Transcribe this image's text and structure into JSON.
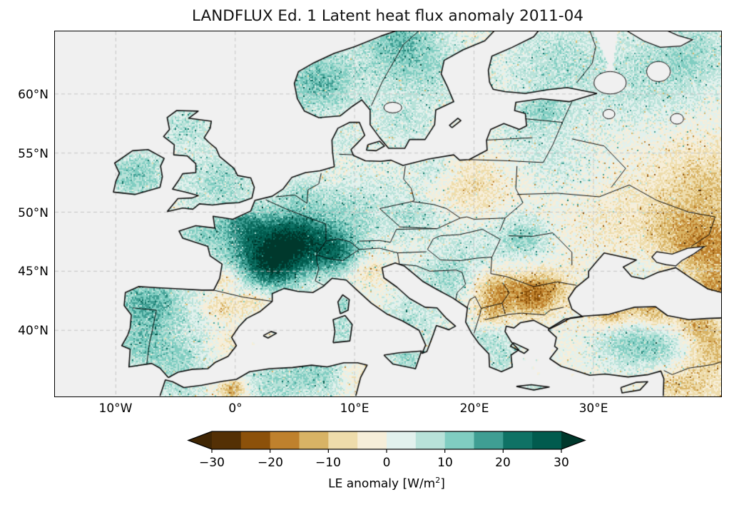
{
  "title": "LANDFLUX Ed. 1 Latent heat flux anomaly 2011-04",
  "axes": {
    "y_ticks": [
      {
        "label": "60°N",
        "lat": 60
      },
      {
        "label": "55°N",
        "lat": 55
      },
      {
        "label": "50°N",
        "lat": 50
      },
      {
        "label": "45°N",
        "lat": 45
      },
      {
        "label": "40°N",
        "lat": 40
      }
    ],
    "x_ticks": [
      {
        "label": "10°W",
        "lon": -10
      },
      {
        "label": "0°",
        "lon": 0
      },
      {
        "label": "10°E",
        "lon": 10
      },
      {
        "label": "20°E",
        "lon": 20
      },
      {
        "label": "30°E",
        "lon": 30
      }
    ]
  },
  "colorbar": {
    "ticks": [
      "−30",
      "−20",
      "−10",
      "0",
      "10",
      "20",
      "30"
    ],
    "tick_values": [
      -30,
      -20,
      -10,
      0,
      10,
      20,
      30
    ],
    "label_prefix": "LE anomaly [W/m",
    "label_sup": "2",
    "label_suffix": "]",
    "under_color": "#402604",
    "over_color": "#00382c",
    "colors": [
      "#543005",
      "#8c510a",
      "#bf812d",
      "#d8b365",
      "#eedcab",
      "#f6eed9",
      "#e2f1ed",
      "#b8e2d9",
      "#80cdc1",
      "#3f9e93",
      "#0f7265",
      "#015b4e"
    ]
  },
  "map": {
    "ocean_color": "#f0f0f0",
    "coastline_color": "#0a0a0a",
    "gridline_color": "#c6c6c6"
  },
  "chart_data": {
    "type": "heatmap",
    "subtype": "geographic-anomaly-map",
    "title": "LANDFLUX Ed. 1 Latent heat flux anomaly 2011-04",
    "units": "W/m2",
    "extent": {
      "lon_min": -15.1,
      "lon_max": 40.7,
      "lat_min": 34.4,
      "lat_max": 65.3
    },
    "colorbar_range": [
      -30,
      30
    ],
    "colorbar_step": 5,
    "grid_lons": [
      -10,
      0,
      10,
      20,
      30
    ],
    "grid_lats": [
      40,
      45,
      50,
      55,
      60
    ],
    "legend_position": "bottom",
    "regions": [
      {
        "name": "france-core",
        "lon": 2.6,
        "lat": 46.9,
        "sigma": 2.6,
        "value": 24
      },
      {
        "name": "france-east",
        "lon": 5.6,
        "lat": 47.6,
        "sigma": 2.0,
        "value": 18
      },
      {
        "name": "massif-central",
        "lon": 3.2,
        "lat": 45.2,
        "sigma": 1.5,
        "value": 12
      },
      {
        "name": "normandy",
        "lon": 0.5,
        "lat": 49.0,
        "sigma": 1.3,
        "value": 8
      },
      {
        "name": "brittany",
        "lon": -3.0,
        "lat": 48.2,
        "sigma": 1.3,
        "value": 9
      },
      {
        "name": "aquitaine-spot",
        "lon": -0.6,
        "lat": 44.4,
        "sigma": 0.8,
        "value": -9
      },
      {
        "name": "pyrenees-spot",
        "lon": 1.5,
        "lat": 42.6,
        "sigma": 0.9,
        "value": -8
      },
      {
        "name": "nw-iberia",
        "lon": -7.4,
        "lat": 42.4,
        "sigma": 2.0,
        "value": 16
      },
      {
        "name": "portugal-south",
        "lon": -8.0,
        "lat": 38.6,
        "sigma": 1.6,
        "value": 10
      },
      {
        "name": "spain-center",
        "lon": -4.0,
        "lat": 39.4,
        "sigma": 2.6,
        "value": 5
      },
      {
        "name": "ebro-valley",
        "lon": -1.0,
        "lat": 41.9,
        "sigma": 1.0,
        "value": -9
      },
      {
        "name": "valencia-coast",
        "lon": -0.6,
        "lat": 38.9,
        "sigma": 1.2,
        "value": -6
      },
      {
        "name": "andalusia",
        "lon": -5.0,
        "lat": 37.3,
        "sigma": 1.5,
        "value": 6
      },
      {
        "name": "england",
        "lon": -1.5,
        "lat": 52.6,
        "sigma": 2.2,
        "value": 9
      },
      {
        "name": "scotland",
        "lon": -4.2,
        "lat": 57.2,
        "sigma": 1.6,
        "value": 8
      },
      {
        "name": "ireland",
        "lon": -8.3,
        "lat": 53.2,
        "sigma": 1.8,
        "value": 12
      },
      {
        "name": "norway-southwest",
        "lon": 7.0,
        "lat": 61.0,
        "sigma": 2.4,
        "value": 14
      },
      {
        "name": "norway-north",
        "lon": 13.5,
        "lat": 65.0,
        "sigma": 2.4,
        "value": 11
      },
      {
        "name": "sweden",
        "lon": 15.5,
        "lat": 62.0,
        "sigma": 2.8,
        "value": 8
      },
      {
        "name": "sweden-south",
        "lon": 14.0,
        "lat": 57.5,
        "sigma": 1.8,
        "value": 6
      },
      {
        "name": "finland",
        "lon": 26.5,
        "lat": 63.0,
        "sigma": 3.0,
        "value": 7
      },
      {
        "name": "baltics",
        "lon": 25.0,
        "lat": 57.2,
        "sigma": 2.4,
        "value": 5
      },
      {
        "name": "estonia",
        "lon": 25.8,
        "lat": 58.8,
        "sigma": 1.2,
        "value": 6
      },
      {
        "name": "nw-russia",
        "lon": 33.5,
        "lat": 60.5,
        "sigma": 3.8,
        "value": 6
      },
      {
        "name": "russia-northeast",
        "lon": 38.0,
        "lat": 63.5,
        "sigma": 2.8,
        "value": 8
      },
      {
        "name": "russia-central-pale",
        "lon": 36.0,
        "lat": 55.0,
        "sigma": 3.5,
        "value": -2
      },
      {
        "name": "volga-tan",
        "lon": 39.8,
        "lat": 52.5,
        "sigma": 2.8,
        "value": -8
      },
      {
        "name": "alps",
        "lon": 8.7,
        "lat": 46.4,
        "sigma": 1.6,
        "value": 16
      },
      {
        "name": "po-valley",
        "lon": 10.9,
        "lat": 45.1,
        "sigma": 1.2,
        "value": -7
      },
      {
        "name": "germany",
        "lon": 9.4,
        "lat": 49.9,
        "sigma": 2.4,
        "value": 7
      },
      {
        "name": "benelux",
        "lon": 5.6,
        "lat": 51.6,
        "sigma": 1.4,
        "value": 6
      },
      {
        "name": "denmark",
        "lon": 9.0,
        "lat": 55.9,
        "sigma": 1.2,
        "value": 4
      },
      {
        "name": "poland-tan",
        "lon": 19.6,
        "lat": 52.2,
        "sigma": 2.2,
        "value": -7
      },
      {
        "name": "poland-teal",
        "lon": 16.8,
        "lat": 53.6,
        "sigma": 1.3,
        "value": 6
      },
      {
        "name": "czechia",
        "lon": 15.4,
        "lat": 49.6,
        "sigma": 1.4,
        "value": 6
      },
      {
        "name": "pannonia",
        "lon": 19.4,
        "lat": 46.8,
        "sigma": 2.0,
        "value": 5
      },
      {
        "name": "carpathians",
        "lon": 24.2,
        "lat": 47.9,
        "sigma": 1.6,
        "value": 11
      },
      {
        "name": "dinarides",
        "lon": 17.6,
        "lat": 44.2,
        "sigma": 1.8,
        "value": 8
      },
      {
        "name": "serbia-brown",
        "lon": 21.7,
        "lat": 43.5,
        "sigma": 1.3,
        "value": -13
      },
      {
        "name": "bulgaria-ridge",
        "lon": 24.6,
        "lat": 42.8,
        "sigma": 1.5,
        "value": -15
      },
      {
        "name": "bulgaria-north-tan",
        "lon": 26.3,
        "lat": 43.6,
        "sigma": 1.4,
        "value": -9
      },
      {
        "name": "macedonia-brown",
        "lon": 21.4,
        "lat": 41.4,
        "sigma": 1.0,
        "value": -11
      },
      {
        "name": "greece",
        "lon": 21.3,
        "lat": 39.4,
        "sigma": 1.3,
        "value": 8
      },
      {
        "name": "peloponnese",
        "lon": 22.3,
        "lat": 37.4,
        "sigma": 1.0,
        "value": 7
      },
      {
        "name": "italy-south",
        "lon": 14.6,
        "lat": 40.9,
        "sigma": 1.8,
        "value": 7
      },
      {
        "name": "sicily",
        "lon": 14.3,
        "lat": 37.5,
        "sigma": 1.2,
        "value": 9
      },
      {
        "name": "sardinia",
        "lon": 8.9,
        "lat": 40.1,
        "sigma": 1.1,
        "value": 8
      },
      {
        "name": "corsica",
        "lon": 9.1,
        "lat": 42.2,
        "sigma": 0.9,
        "value": 9
      },
      {
        "name": "belarus",
        "lon": 27.5,
        "lat": 53.5,
        "sigma": 2.2,
        "value": 4
      },
      {
        "name": "ukraine-pale",
        "lon": 31.0,
        "lat": 49.5,
        "sigma": 3.2,
        "value": -3
      },
      {
        "name": "ukraine-east-tan",
        "lon": 37.5,
        "lat": 48.5,
        "sigma": 2.6,
        "value": -9
      },
      {
        "name": "russia-southeast-tan",
        "lon": 39.8,
        "lat": 46.8,
        "sigma": 2.0,
        "value": -12
      },
      {
        "name": "crimea",
        "lon": 34.2,
        "lat": 45.2,
        "sigma": 1.0,
        "value": 3
      },
      {
        "name": "turkey-coast-west",
        "lon": 31.5,
        "lat": 41.6,
        "sigma": 1.2,
        "value": -15
      },
      {
        "name": "turkey-coast-mid",
        "lon": 35.0,
        "lat": 41.7,
        "sigma": 1.2,
        "value": -13
      },
      {
        "name": "turkey-coast-east",
        "lon": 38.6,
        "lat": 40.7,
        "sigma": 1.1,
        "value": -12
      },
      {
        "name": "turkey-interior",
        "lon": 32.8,
        "lat": 38.9,
        "sigma": 1.9,
        "value": 10
      },
      {
        "name": "turkey-interior-east",
        "lon": 35.8,
        "lat": 38.4,
        "sigma": 1.5,
        "value": 8
      },
      {
        "name": "turkey-east-tan",
        "lon": 40.3,
        "lat": 38.8,
        "sigma": 1.5,
        "value": -10
      },
      {
        "name": "caucasus-brown",
        "lon": 40.3,
        "lat": 43.5,
        "sigma": 1.3,
        "value": -14
      },
      {
        "name": "syria-tan",
        "lon": 38.5,
        "lat": 35.6,
        "sigma": 2.0,
        "value": -8
      },
      {
        "name": "levant-coast",
        "lon": 36.2,
        "lat": 35.2,
        "sigma": 0.8,
        "value": -5
      },
      {
        "name": "maghreb-teal",
        "lon": 3.5,
        "lat": 35.6,
        "sigma": 2.2,
        "value": 9
      },
      {
        "name": "maghreb-teal-east",
        "lon": 7.5,
        "lat": 36.5,
        "sigma": 1.5,
        "value": 10
      },
      {
        "name": "maghreb-brown-spot",
        "lon": -0.2,
        "lat": 35.0,
        "sigma": 0.8,
        "value": -16
      },
      {
        "name": "tunisia-tan",
        "lon": 9.8,
        "lat": 36.2,
        "sigma": 1.1,
        "value": -5
      },
      {
        "name": "morocco",
        "lon": -4.8,
        "lat": 35.0,
        "sigma": 1.4,
        "value": 6
      },
      {
        "name": "crete-teal",
        "lon": 24.8,
        "lat": 35.2,
        "sigma": 0.8,
        "value": 5
      },
      {
        "name": "central-europe-pale",
        "lon": 13.0,
        "lat": 50.8,
        "sigma": 3.0,
        "value": 3
      }
    ]
  }
}
